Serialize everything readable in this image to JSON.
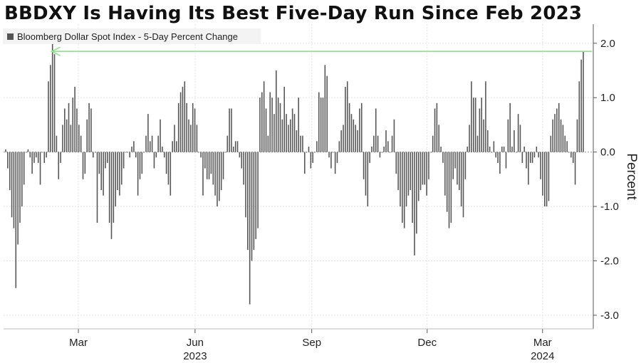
{
  "chart_data": {
    "type": "bar",
    "title": "BBDXY Is Having Its Best Five-Day Run Since Feb 2023",
    "legend": [
      "Bloomberg Dollar Spot Index - 5-Day Percent Change"
    ],
    "legend_position": "top-left",
    "ylabel": "Percent",
    "ylim": [
      -3.25,
      2.35
    ],
    "yticks": [
      2.0,
      1.0,
      0.0,
      -1.0,
      -2.0,
      -3.0
    ],
    "ytick_labels": [
      "2.0",
      "1.0",
      "0.0",
      "-1.0",
      "-2.0",
      "-3.0"
    ],
    "xlim": [
      "2023-01-01",
      "2024-04-10"
    ],
    "month_ticks": [
      {
        "date": "2023-03-01",
        "label": "Mar"
      },
      {
        "date": "2023-06-01",
        "label": "Jun"
      },
      {
        "date": "2023-09-01",
        "label": "Sep"
      },
      {
        "date": "2023-12-01",
        "label": "Dec"
      },
      {
        "date": "2024-03-01",
        "label": "Mar"
      }
    ],
    "year_labels": [
      {
        "date": "2023-06-01",
        "label": "2023"
      },
      {
        "date": "2024-03-01",
        "label": "2024"
      }
    ],
    "grid": true,
    "bar_color": "#555555",
    "annotation": {
      "type": "arrow",
      "color": "#8de28d",
      "from_date": "2024-04-09",
      "to_date": "2023-02-08",
      "value": 1.85
    },
    "series": [
      {
        "values": [
          0.05,
          -0.3,
          -0.7,
          -1.2,
          -1.4,
          -2.5,
          -1.7,
          -1.3,
          -1.0,
          -0.6,
          0.0,
          0.05,
          -0.1,
          -0.4,
          -0.2,
          -0.1,
          -0.2,
          -0.6,
          0.0,
          -0.2,
          -0.1,
          1.3,
          1.6,
          2.0,
          1.8,
          0.3,
          -0.5,
          -0.2,
          0.5,
          0.8,
          0.6,
          0.9,
          0.5,
          1.0,
          1.2,
          0.8,
          0.5,
          0.3,
          -0.5,
          -0.4,
          0.6,
          0.9,
          0.8,
          -0.1,
          0.0,
          -1.3,
          -0.4,
          -0.7,
          -0.8,
          -0.3,
          -0.2,
          -1.3,
          -1.6,
          -1.3,
          -1.0,
          -0.7,
          -0.8,
          -0.6,
          -0.3,
          0.0,
          0.0,
          -0.1,
          0.1,
          0.2,
          -0.1,
          -0.8,
          -0.5,
          -0.4,
          0.0,
          0.3,
          0.7,
          0.2,
          0.3,
          -0.3,
          -0.1,
          0.3,
          0.6,
          0.1,
          -0.1,
          -0.4,
          -0.6,
          -0.8,
          0.2,
          0.5,
          0.2,
          0.9,
          1.1,
          1.2,
          1.3,
          0.9,
          0.6,
          0.5,
          0.9,
          0.8,
          0.5,
          0.0,
          -0.1,
          -0.8,
          -0.3,
          -0.5,
          -0.5,
          -0.4,
          -0.6,
          -0.8,
          -1.0,
          -0.9,
          -0.7,
          -0.5,
          0.0,
          0.3,
          0.8,
          0.8,
          0.1,
          0.2,
          0.2,
          -0.1,
          -0.3,
          -0.6,
          -1.2,
          -1.8,
          -2.8,
          -2.0,
          -1.8,
          -1.6,
          -1.4,
          1.0,
          1.1,
          1.3,
          0.8,
          0.3,
          1.1,
          1.0,
          0.7,
          1.5,
          1.0,
          0.9,
          0.6,
          1.2,
          0.7,
          0.5,
          0.6,
          0.8,
          0.7,
          0.4,
          1.0,
          0.3,
          0.3,
          -0.4,
          0.0,
          0.1,
          -0.3,
          -0.2,
          0.0,
          0.2,
          1.1,
          1.0,
          1.0,
          1.6,
          1.4,
          -0.1,
          -0.3,
          0.0,
          -0.4,
          -0.2,
          0.2,
          0.4,
          0.5,
          1.2,
          1.3,
          0.9,
          0.7,
          0.6,
          0.5,
          0.4,
          0.8,
          0.9,
          -0.5,
          -0.8,
          -1.0,
          -0.2,
          0.1,
          0.3,
          0.8,
          0.3,
          -0.1,
          0.0,
          0.1,
          0.4,
          0.2,
          0.0,
          0.3,
          0.6,
          -0.4,
          -0.7,
          -1.0,
          -1.3,
          -1.4,
          -1.0,
          -0.8,
          -0.7,
          -1.3,
          -1.9,
          -1.5,
          -0.9,
          -0.7,
          -0.6,
          -0.6,
          -0.8,
          -0.5,
          0.0,
          0.3,
          0.8,
          0.9,
          0.5,
          0.1,
          -0.2,
          -0.8,
          -1.1,
          -1.4,
          -1.3,
          -0.5,
          -0.3,
          -0.6,
          -0.7,
          -1.0,
          -1.2,
          -0.5,
          0.1,
          0.5,
          1.3,
          1.0,
          1.0,
          0.3,
          0.8,
          1.0,
          0.6,
          1.3,
          0.4,
          0.1,
          0.0,
          0.2,
          -0.1,
          -0.2,
          -0.4,
          0.1,
          0.1,
          -0.3,
          0.6,
          0.9,
          0.1,
          0.4,
          0.0,
          0.7,
          0.5,
          -0.2,
          0.1,
          -0.3,
          -0.6,
          -0.2,
          -0.2,
          -0.1,
          0.1,
          -0.1,
          -0.5,
          -0.8,
          -1.0,
          -1.0,
          -0.9,
          0.3,
          0.6,
          0.7,
          0.8,
          0.9,
          0.6,
          0.5,
          0.3,
          0.2,
          0.0,
          -0.1,
          -0.2,
          -0.6,
          0.6,
          1.3,
          1.7,
          1.85
        ]
      }
    ]
  }
}
